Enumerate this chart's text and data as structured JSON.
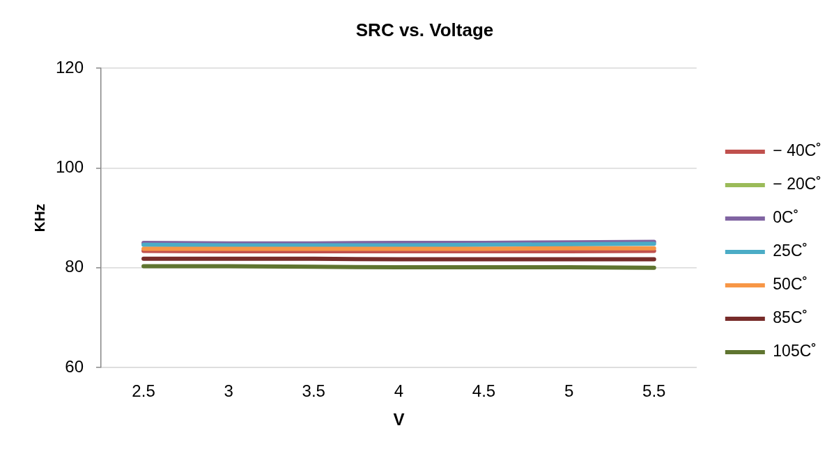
{
  "chart_data": {
    "type": "line",
    "title": "SRC vs. Voltage",
    "xlabel": "V",
    "ylabel": "KHz",
    "categories": [
      "2.5",
      "3",
      "3.5",
      "4",
      "4.5",
      "5",
      "5.5"
    ],
    "ylim": [
      60,
      120
    ],
    "yticks": [
      60,
      80,
      100,
      120
    ],
    "grid": "y",
    "legend": "right",
    "marker": "none",
    "line_style": "solid",
    "series": [
      {
        "name": "− 40C˚",
        "color": "#c0504d",
        "values": [
          83.4,
          83.3,
          83.3,
          83.3,
          83.3,
          83.3,
          83.4
        ]
      },
      {
        "name": "− 20C˚",
        "color": "#9bbb59",
        "values": [
          null,
          null,
          null,
          null,
          null,
          null,
          null
        ]
      },
      {
        "name": "0C˚",
        "color": "#8064a2",
        "values": [
          85.0,
          84.9,
          84.9,
          85.0,
          85.0,
          85.1,
          85.2
        ]
      },
      {
        "name": "25C˚",
        "color": "#4bacc6",
        "values": [
          84.6,
          84.5,
          84.5,
          84.5,
          84.6,
          84.7,
          84.8
        ]
      },
      {
        "name": "50C˚",
        "color": "#f79646",
        "values": [
          83.8,
          83.8,
          83.8,
          83.8,
          83.8,
          83.9,
          83.9
        ]
      },
      {
        "name": "85C˚",
        "color": "#772c2a",
        "values": [
          81.8,
          81.8,
          81.8,
          81.7,
          81.7,
          81.7,
          81.7
        ]
      },
      {
        "name": "105C˚",
        "color": "#5f7530",
        "values": [
          80.3,
          80.3,
          80.2,
          80.1,
          80.1,
          80.1,
          80.0
        ]
      }
    ]
  }
}
